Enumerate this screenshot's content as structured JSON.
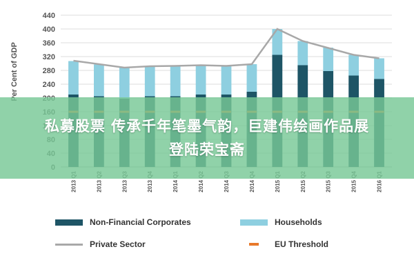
{
  "chart_data": {
    "type": "bar",
    "ylabel": "Per Cent of GDP",
    "ylim": [
      0,
      440
    ],
    "yticks": [
      0,
      40,
      80,
      120,
      160,
      200,
      240,
      280,
      320,
      360,
      400,
      440
    ],
    "categories": [
      "2013 Q1",
      "2013 Q2",
      "2013 Q3",
      "2013 Q4",
      "2014 Q1",
      "2014 Q2",
      "2014 Q3",
      "2014 Q4",
      "2015 Q1",
      "2015 Q2",
      "2015 Q3",
      "2015 Q4",
      "2016 Q1"
    ],
    "series": [
      {
        "name": "Non-Financial Corporates",
        "kind": "stacked-bar",
        "color": "#1e5566",
        "values": [
          210,
          205,
          198,
          205,
          205,
          210,
          210,
          218,
          325,
          295,
          278,
          265,
          255
        ]
      },
      {
        "name": "Households",
        "kind": "stacked-bar",
        "color": "#8ecfe0",
        "values": [
          97,
          92,
          90,
          88,
          88,
          85,
          83,
          80,
          75,
          70,
          68,
          60,
          60
        ]
      },
      {
        "name": "Private Sector",
        "kind": "line",
        "color": "#a8a8a8",
        "values": [
          308,
          298,
          288,
          292,
          293,
          295,
          293,
          298,
          400,
          365,
          345,
          325,
          315
        ]
      },
      {
        "name": "EU Threshold",
        "kind": "dashed-line",
        "color": "#e8792a",
        "values": [
          160,
          160,
          160,
          160,
          160,
          160,
          160,
          160,
          160,
          160,
          160,
          160,
          160
        ]
      }
    ],
    "grid": true,
    "legend_position": "bottom"
  },
  "overlay": {
    "line1": "私募股票 传承千年笔墨气韵，巨建伟绘画作品展",
    "line2": "登陆荣宝斋"
  }
}
